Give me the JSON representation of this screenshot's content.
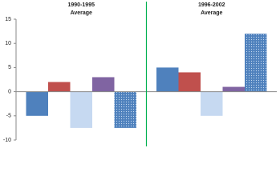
{
  "chart_data": {
    "type": "bar",
    "categories": [
      "1990-1995",
      "1996-2002"
    ],
    "category_note": "Average",
    "series": [
      {
        "color": "#4f81bd",
        "values": [
          -5,
          5
        ]
      },
      {
        "color": "#c0504d",
        "values": [
          2,
          4
        ]
      },
      {
        "color": "#c6d9f1",
        "values": [
          -7.5,
          -5
        ]
      },
      {
        "color": "#8064a2",
        "values": [
          3,
          1
        ]
      },
      {
        "color": "#4f81bd",
        "pattern": "dotted",
        "values": [
          -7.5,
          12
        ]
      }
    ],
    "ylim": [
      -10,
      15
    ],
    "yticks": [
      -10,
      -5,
      0,
      5,
      10,
      15
    ],
    "divider_color": "#00b050"
  }
}
